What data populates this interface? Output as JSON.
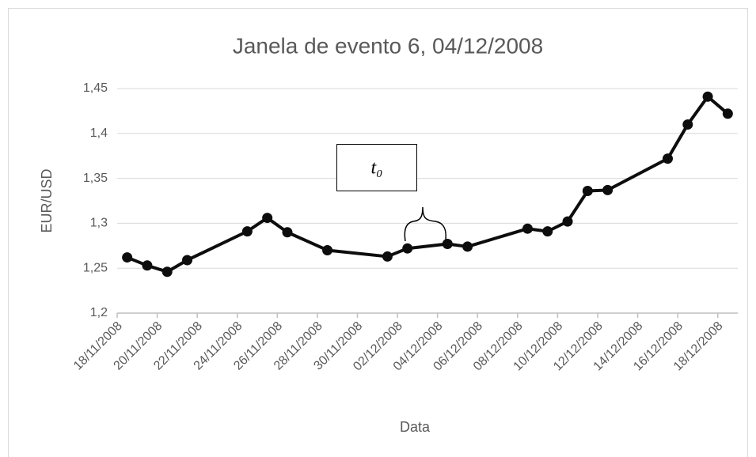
{
  "chart_data": {
    "type": "line",
    "title": "Janela de evento 6, 04/12/2008",
    "x_label": "Data",
    "y_label": "EUR/USD",
    "annotation": "t₀",
    "x": [
      "18/11/2008",
      "19/11/2008",
      "20/11/2008",
      "21/11/2008",
      "24/11/2008",
      "25/11/2008",
      "26/11/2008",
      "28/11/2008",
      "01/12/2008",
      "02/12/2008",
      "04/12/2008",
      "05/12/2008",
      "08/12/2008",
      "09/12/2008",
      "10/12/2008",
      "11/12/2008",
      "12/12/2008",
      "15/12/2008",
      "16/12/2008",
      "17/12/2008",
      "18/12/2008"
    ],
    "series": [
      {
        "name": "EUR/USD",
        "color": "#0d0d0d",
        "values": [
          1.262,
          1.253,
          1.246,
          1.259,
          1.291,
          1.306,
          1.29,
          1.27,
          1.263,
          1.272,
          1.277,
          1.274,
          1.294,
          1.291,
          1.302,
          1.336,
          1.337,
          1.372,
          1.41,
          1.441,
          1.422
        ]
      }
    ],
    "xlim": [
      "18/11/2008",
      "18/12/2008"
    ],
    "xticks": [
      "18/11/2008",
      "20/11/2008",
      "22/11/2008",
      "24/11/2008",
      "26/11/2008",
      "28/11/2008",
      "30/11/2008",
      "02/12/2008",
      "04/12/2008",
      "06/12/2008",
      "08/12/2008",
      "10/12/2008",
      "12/12/2008",
      "14/12/2008",
      "16/12/2008",
      "18/12/2008"
    ],
    "ylim": [
      1.2,
      1.45
    ],
    "yticks": [
      {
        "value": 1.2,
        "label": "1,2"
      },
      {
        "value": 1.25,
        "label": "1,25"
      },
      {
        "value": 1.3,
        "label": "1,3"
      },
      {
        "value": 1.35,
        "label": "1,35"
      },
      {
        "value": 1.4,
        "label": "1,4"
      },
      {
        "value": 1.45,
        "label": "1,45"
      }
    ],
    "grid": true
  }
}
